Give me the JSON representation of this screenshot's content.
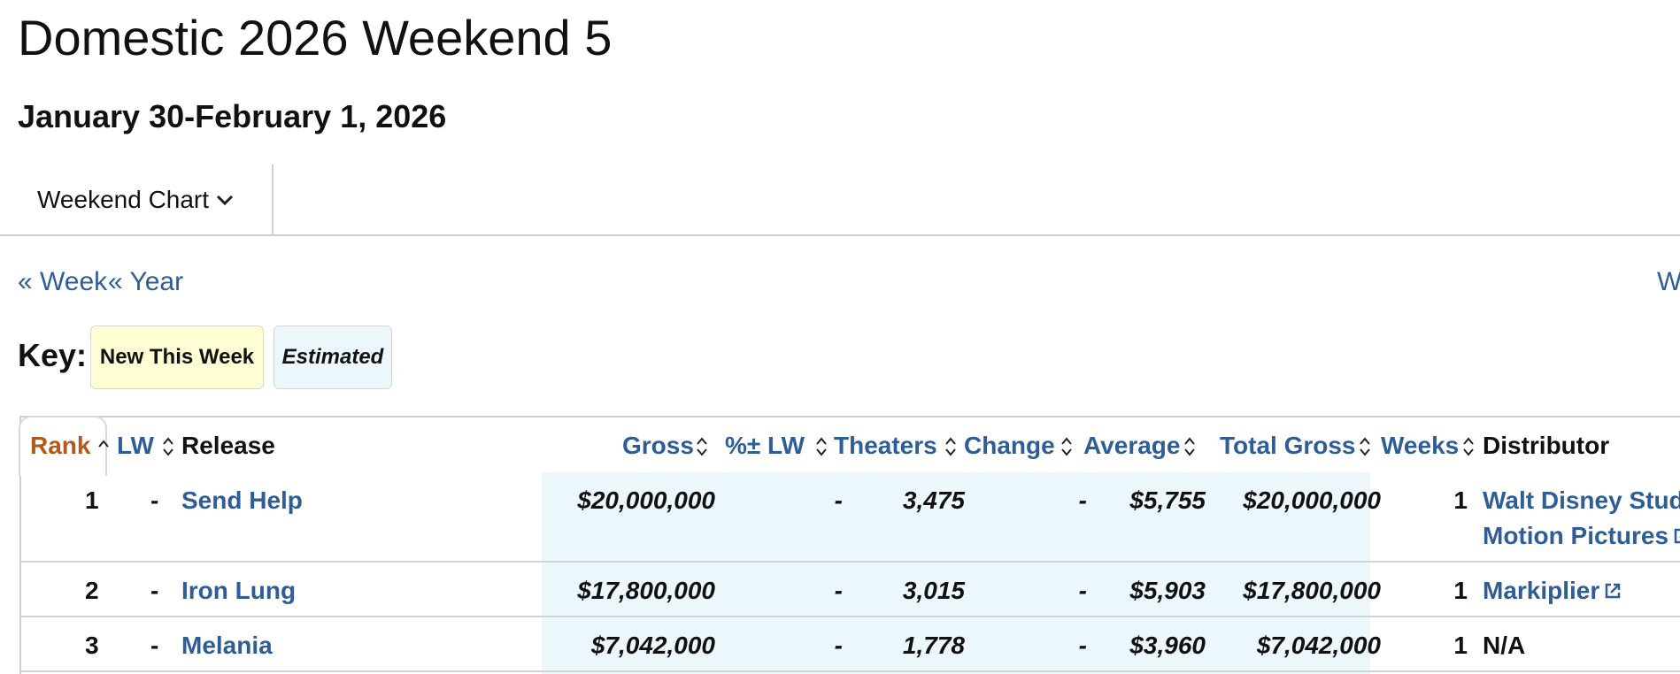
{
  "page": {
    "title": "Domestic 2026 Weekend 5",
    "subtitle": "January 30-February 1, 2026"
  },
  "chart_selector": {
    "label": "Weekend Chart",
    "icon": "chevron-down-icon"
  },
  "nav": {
    "prev_week": "« Week",
    "prev_year": "« Year",
    "next_partial": "W"
  },
  "key": {
    "label": "Key:",
    "new_this_week": "New This Week",
    "estimated": "Estimated"
  },
  "colors": {
    "link": "#2f5d95",
    "active_sort": "#b4581b",
    "new_this_week_bg": "#fffdd4",
    "estimated_bg": "#ecf7fc"
  },
  "table": {
    "headers": {
      "rank": "Rank",
      "lw": "LW",
      "release": "Release",
      "gross": "Gross",
      "pct_lw": "%± LW",
      "theaters": "Theaters",
      "change": "Change",
      "average": "Average",
      "total_gross": "Total Gross",
      "weeks": "Weeks",
      "distributor": "Distributor"
    },
    "rows": [
      {
        "rank": "1",
        "lw": "-",
        "release": "Send Help",
        "gross": "$20,000,000",
        "pct_lw": "-",
        "theaters": "3,475",
        "change": "-",
        "average": "$5,755",
        "total_gross": "$20,000,000",
        "weeks": "1",
        "distributor_line1": "Walt Disney Stud",
        "distributor_line2": "Motion Pictures"
      },
      {
        "rank": "2",
        "lw": "-",
        "release": "Iron Lung",
        "gross": "$17,800,000",
        "pct_lw": "-",
        "theaters": "3,015",
        "change": "-",
        "average": "$5,903",
        "total_gross": "$17,800,000",
        "weeks": "1",
        "distributor": "Markiplier"
      },
      {
        "rank": "3",
        "lw": "-",
        "release": "Melania",
        "gross": "$7,042,000",
        "pct_lw": "-",
        "theaters": "1,778",
        "change": "-",
        "average": "$3,960",
        "total_gross": "$7,042,000",
        "weeks": "1",
        "distributor": "N/A"
      }
    ]
  }
}
